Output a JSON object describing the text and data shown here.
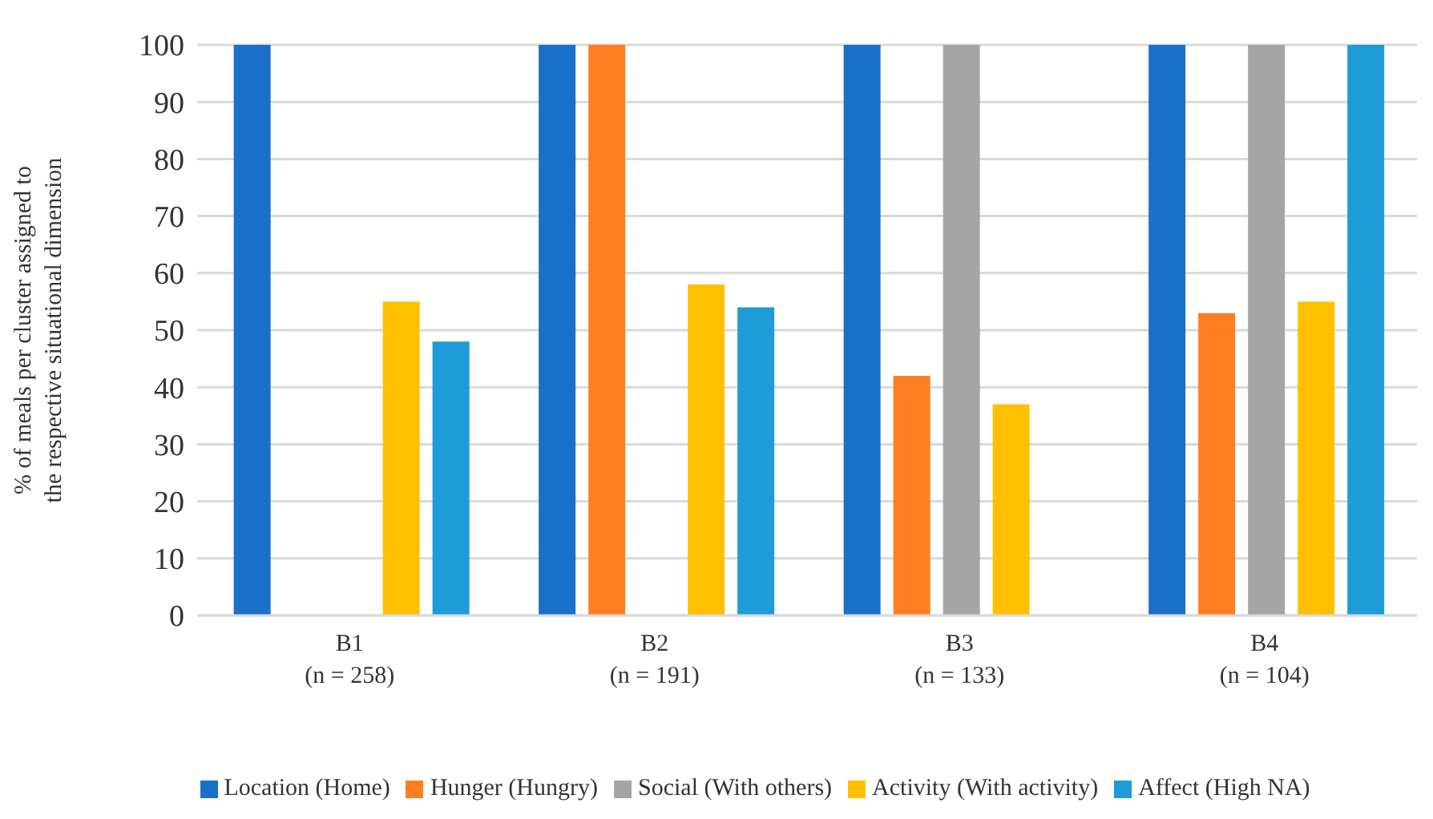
{
  "chart_data": {
    "type": "bar",
    "ylabel": "% of meals per cluster assigned to the respective situational dimension",
    "categories": [
      "B1\n(n = 258)",
      "B2\n(n = 191)",
      "B3\n(n = 133)",
      "B4\n(n = 104)"
    ],
    "series": [
      {
        "name": "Location (Home)",
        "color": "#1a70c8",
        "values": [
          100,
          100,
          100,
          100
        ]
      },
      {
        "name": "Hunger (Hungry)",
        "color": "#fd7f22",
        "values": [
          0,
          100,
          42,
          53
        ]
      },
      {
        "name": "Social (With others)",
        "color": "#a5a5a5",
        "values": [
          0,
          0,
          100,
          100
        ]
      },
      {
        "name": "Activity (With activity)",
        "color": "#fec000",
        "values": [
          55,
          58,
          37,
          55
        ]
      },
      {
        "name": "Affect (High NA)",
        "color": "#1e9cd8",
        "values": [
          48,
          54,
          0,
          100
        ]
      }
    ],
    "ylim": [
      0,
      100
    ],
    "yticks": [
      0,
      10,
      20,
      30,
      40,
      50,
      60,
      70,
      80,
      90,
      100
    ],
    "grid": "y",
    "legend": "bottom"
  }
}
